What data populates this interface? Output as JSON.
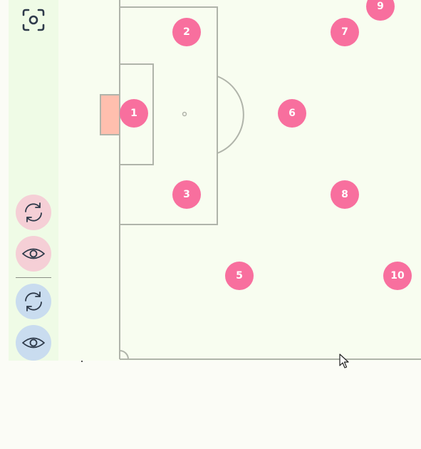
{
  "toolbar": {
    "screenshot_icon": "camera-frame-icon",
    "buttons": [
      {
        "icon": "refresh-icon",
        "team": "home",
        "color": "#f5cfd6"
      },
      {
        "icon": "eye-icon",
        "team": "home",
        "color": "#f5cfd6"
      },
      {
        "icon": "refresh-icon",
        "team": "away",
        "color": "#c9dcef"
      },
      {
        "icon": "eye-icon",
        "team": "away",
        "color": "#c9dcef"
      }
    ]
  },
  "colors": {
    "player": "#f86f9e",
    "goal": "#ffbfae",
    "pitch_line": "#b0b4aa",
    "pitch_bg": "#f8fdf0",
    "sidebar_bg": "#effbe6"
  },
  "players": [
    {
      "number": "1"
    },
    {
      "number": "2"
    },
    {
      "number": "3"
    },
    {
      "number": "5"
    },
    {
      "number": "6"
    },
    {
      "number": "7"
    },
    {
      "number": "8"
    },
    {
      "number": "9"
    },
    {
      "number": "10"
    }
  ]
}
